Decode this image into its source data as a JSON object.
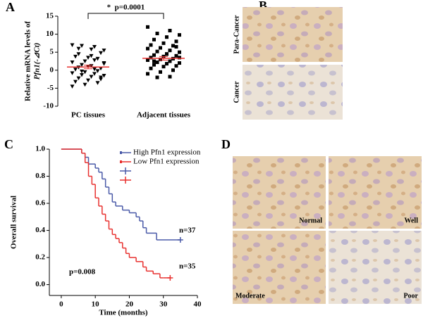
{
  "panel_labels": [
    "A",
    "B",
    "C",
    "D"
  ],
  "images": {
    "B": [
      "Para-Cancer",
      "Cancer"
    ],
    "D": [
      "Normal",
      "Well",
      "Moderate",
      "Poor"
    ]
  },
  "chart_data": [
    {
      "type": "dotplot",
      "ylabel": [
        "Relative mRNA levels of",
        "Pfn1(-⊿Ct)"
      ],
      "annotation": "*  p=0.0001",
      "categories": [
        "PC  tissues",
        "Adjacent tissues"
      ],
      "ylim": [
        -10,
        15
      ],
      "yticks": [
        -10,
        -5,
        0,
        5,
        10,
        15
      ],
      "mean_color": "#e8312f",
      "groups": [
        {
          "marker": "triangle-down",
          "color": "#000000",
          "mean": 0.9,
          "sem": 0.5,
          "values": [
            7,
            6.5,
            6.8,
            5.5,
            5.8,
            4.5,
            4.8,
            3.5,
            3.8,
            3.2,
            2.5,
            2.2,
            2.8,
            1.5,
            1.8,
            1.2,
            0.8,
            0.5,
            1.0,
            0.2,
            -0.2,
            -0.5,
            -0.8,
            -1.0,
            -1.3,
            -1.5,
            -1.8,
            -2.2,
            -2.5,
            -2.8,
            -3.2,
            -3.5,
            -4.0,
            -4.5,
            0.3,
            -0.3,
            2.0,
            4.0,
            6.0,
            -2.0
          ]
        },
        {
          "marker": "square",
          "color": "#000000",
          "mean": 3.3,
          "sem": 0.5,
          "values": [
            12,
            11,
            10.2,
            9.8,
            9.2,
            8.5,
            8,
            7.5,
            7,
            6.8,
            6.2,
            6,
            5.5,
            5.2,
            5,
            4.5,
            4.2,
            4,
            3.8,
            3.5,
            3.2,
            3,
            2.8,
            2.5,
            2.2,
            2,
            1.8,
            1.5,
            1.2,
            1,
            0.5,
            0,
            -0.5,
            -1,
            -1.8,
            -2,
            3.5,
            4.5,
            2.5,
            6.5
          ]
        }
      ]
    },
    {
      "type": "km",
      "xlabel": "Time (months)",
      "ylabel": "Overall survival",
      "xlim": [
        -3.5,
        40
      ],
      "xticks": [
        0,
        10,
        20,
        30,
        40
      ],
      "ylim": [
        -0.08,
        1.0
      ],
      "yticks": [
        {
          "value": 0,
          "label": "0.0"
        },
        {
          "value": 0.2,
          "label": "0.2"
        },
        {
          "value": 0.4,
          "label": "0.4"
        },
        {
          "value": 0.6,
          "label": "0.6"
        },
        {
          "value": 0.8,
          "label": "0.8"
        },
        {
          "value": 1,
          "label": "1.0"
        }
      ],
      "annotations": [
        "p=0.008",
        "n=37",
        "n=35"
      ],
      "series": [
        {
          "name": "High Pfn1 expression",
          "color": "#4a5aa8",
          "x": [
            0,
            6,
            7,
            8,
            10,
            11,
            12,
            13,
            14,
            15,
            16,
            18,
            20,
            22,
            23,
            24,
            25,
            28,
            35
          ],
          "values": [
            1.0,
            0.97,
            0.94,
            0.89,
            0.86,
            0.83,
            0.78,
            0.72,
            0.67,
            0.61,
            0.58,
            0.55,
            0.53,
            0.5,
            0.47,
            0.42,
            0.38,
            0.33,
            0.33
          ]
        },
        {
          "name": "Low Pfn1 expression",
          "color": "#e8312f",
          "x": [
            0,
            6,
            7,
            8,
            9,
            10,
            11,
            12,
            13,
            14,
            15,
            16,
            17,
            18,
            19,
            20,
            22,
            24,
            25,
            27,
            29,
            30,
            32
          ],
          "values": [
            1.0,
            0.97,
            0.9,
            0.8,
            0.74,
            0.64,
            0.58,
            0.52,
            0.47,
            0.41,
            0.37,
            0.34,
            0.31,
            0.27,
            0.23,
            0.2,
            0.17,
            0.13,
            0.1,
            0.08,
            0.05,
            0.05,
            0.05
          ]
        }
      ]
    }
  ]
}
